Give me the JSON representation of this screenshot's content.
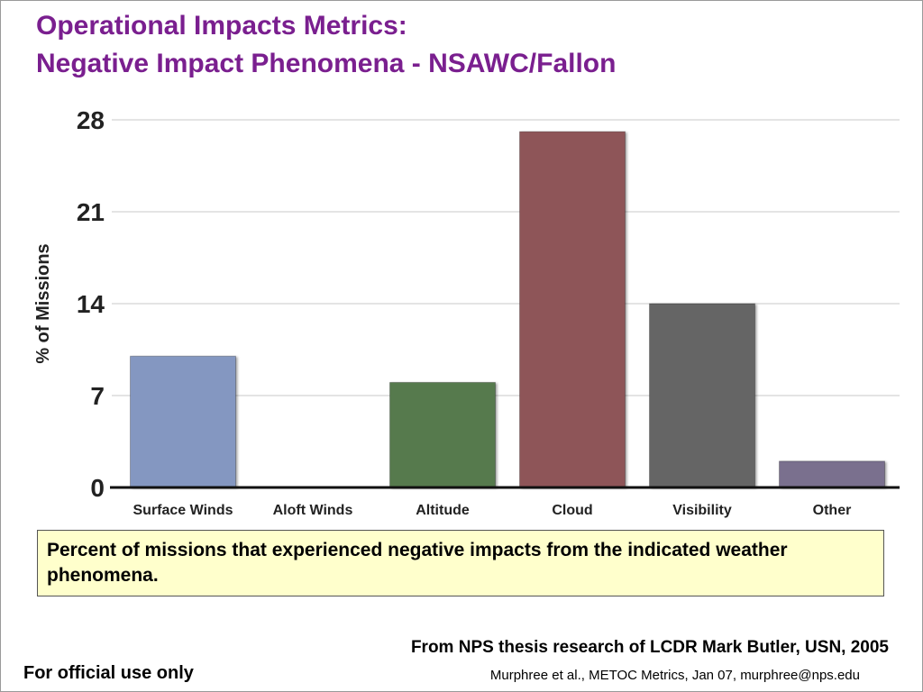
{
  "slide": {
    "title_line1": "Operational Impacts Metrics:",
    "title_line2": "Negative Impact Phenomena - NSAWC/Fallon",
    "caption": "Percent of missions that experienced negative impacts from the indicated weather phenomena.",
    "source": "From NPS thesis research of LCDR Mark Butler, USN, 2005",
    "classification": "For official use only",
    "credit": "Murphree et al., METOC Metrics, Jan 07, murphree@nps.edu"
  },
  "chart_data": {
    "type": "bar",
    "categories": [
      "Surface Winds",
      "Aloft Winds",
      "Altitude",
      "Cloud",
      "Visibility",
      "Other"
    ],
    "values": [
      10,
      0,
      8,
      27.1,
      14,
      2
    ],
    "colors": [
      "#8497c1",
      "#8497c1",
      "#577a4e",
      "#8e5558",
      "#656565",
      "#7a6f8e"
    ],
    "ylabel": "% of Missions",
    "yticks": [
      0,
      7,
      14,
      21,
      28
    ],
    "ytick_labels": [
      "0",
      "7",
      "14",
      "21",
      "28"
    ],
    "ylim": [
      0,
      28
    ],
    "grid": true,
    "legend": "none"
  }
}
